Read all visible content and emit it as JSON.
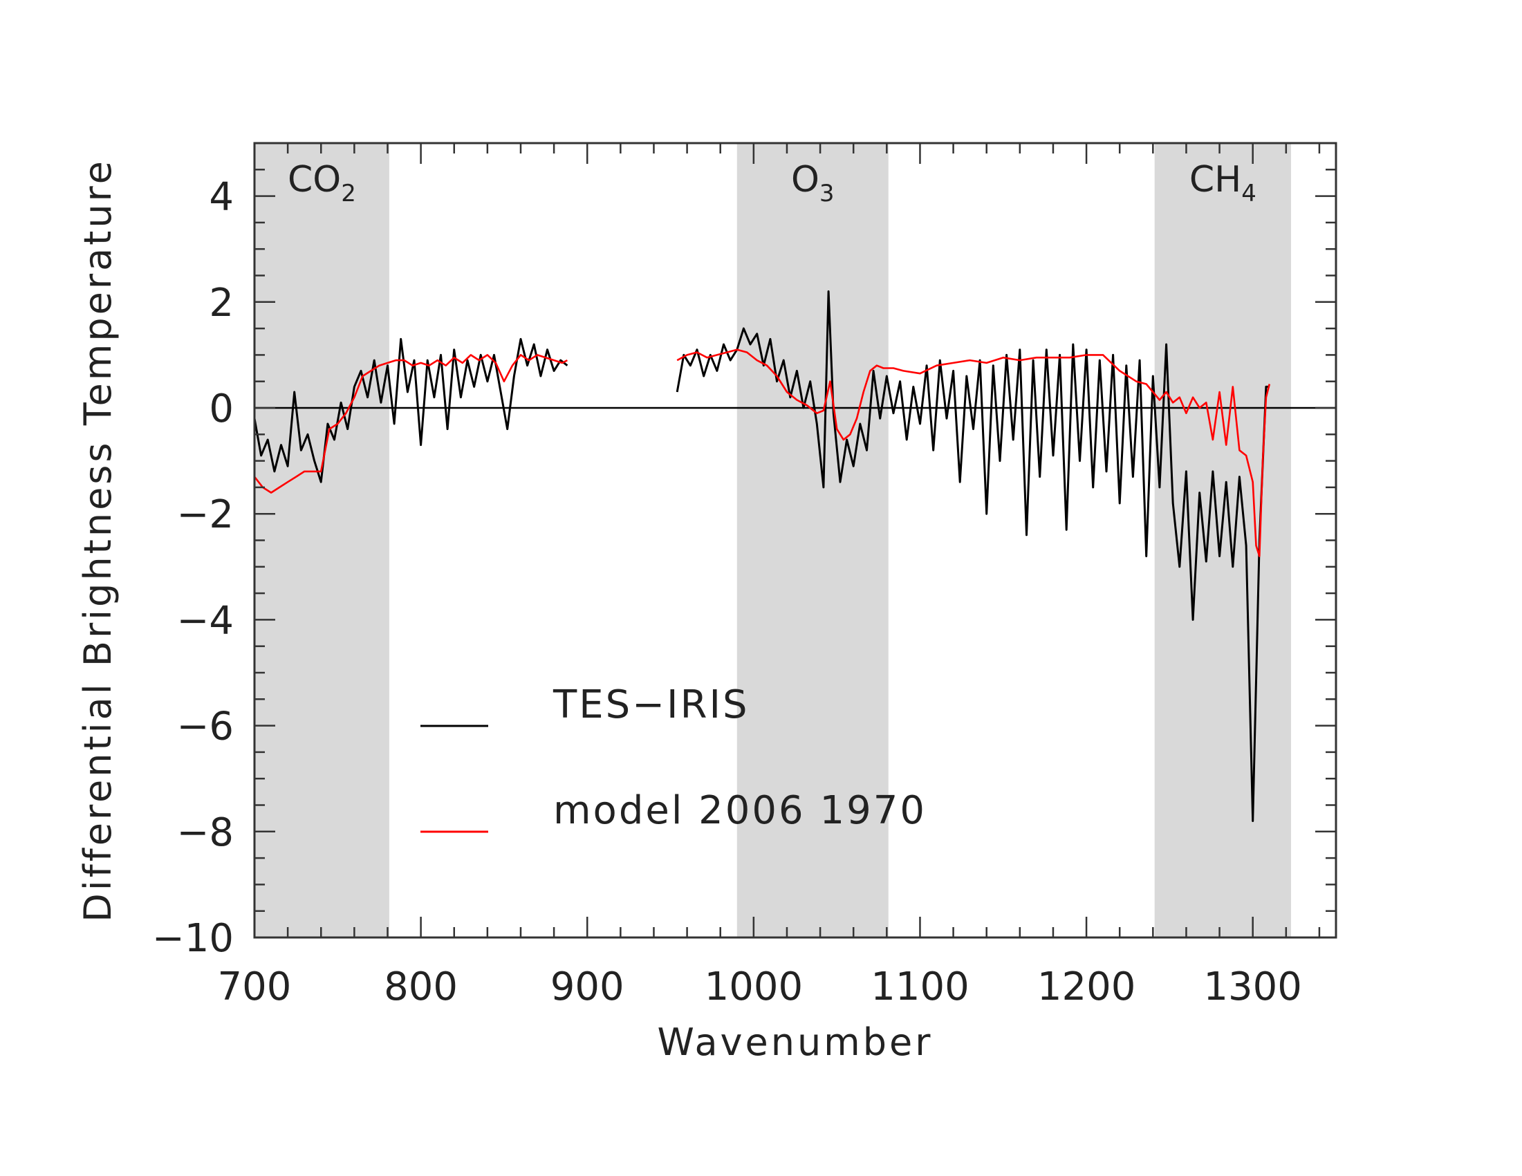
{
  "chart_data": {
    "type": "line",
    "title": "",
    "xlabel": "Wavenumber",
    "ylabel": "Differential Brightness Temperature",
    "xlim": [
      700,
      1350
    ],
    "ylim": [
      -10,
      5
    ],
    "xticks": [
      700,
      800,
      900,
      1000,
      1100,
      1200,
      1300
    ],
    "xtick_labels": [
      "700",
      "800",
      "900",
      "1000",
      "1100",
      "1200",
      "1300"
    ],
    "yticks": [
      4,
      2,
      0,
      -2,
      -4,
      -6,
      -8,
      -10
    ],
    "ytick_labels": [
      "4",
      "2",
      "0",
      "−2",
      "−4",
      "−6",
      "−8",
      "−10"
    ],
    "grid": false,
    "zero_line": true,
    "legend_position": "lower-center",
    "bands": [
      {
        "label": "CO",
        "subscript": "2",
        "x0": 700,
        "x1": 781,
        "color": "#d9d9d9"
      },
      {
        "label": "O",
        "subscript": "3",
        "x0": 990,
        "x1": 1081,
        "color": "#d9d9d9"
      },
      {
        "label": "CH",
        "subscript": "4",
        "x0": 1241,
        "x1": 1323,
        "color": "#d9d9d9"
      }
    ],
    "series": [
      {
        "name": "TES−IRIS",
        "color": "#000000",
        "segments": [
          {
            "x": [
              700,
              704,
              708,
              712,
              716,
              720,
              724,
              728,
              732,
              736,
              740,
              744,
              748,
              752,
              756,
              760,
              764,
              768,
              772,
              776,
              780,
              784,
              788,
              792,
              796,
              800,
              804,
              808,
              812,
              816,
              820,
              824,
              828,
              832,
              836,
              840,
              844,
              848,
              852,
              856,
              860,
              864,
              868,
              872,
              876,
              880,
              884,
              888
            ],
            "y": [
              -0.2,
              -0.9,
              -0.6,
              -1.2,
              -0.7,
              -1.1,
              0.3,
              -0.8,
              -0.5,
              -1.0,
              -1.4,
              -0.3,
              -0.6,
              0.1,
              -0.4,
              0.4,
              0.7,
              0.2,
              0.9,
              0.1,
              0.8,
              -0.3,
              1.3,
              0.3,
              0.9,
              -0.7,
              0.9,
              0.2,
              1.0,
              -0.4,
              1.1,
              0.2,
              0.9,
              0.4,
              1.0,
              0.5,
              1.0,
              0.3,
              -0.4,
              0.6,
              1.3,
              0.8,
              1.2,
              0.6,
              1.1,
              0.7,
              0.9,
              0.8
            ]
          },
          {
            "x": [
              954,
              958,
              962,
              966,
              970,
              974,
              978,
              982,
              986,
              990,
              994,
              998,
              1002,
              1006,
              1010,
              1014,
              1018,
              1022,
              1026,
              1030,
              1034,
              1038,
              1042,
              1045,
              1048,
              1052,
              1056,
              1060,
              1064,
              1068,
              1072,
              1076,
              1080,
              1084,
              1088,
              1092,
              1096,
              1100,
              1104,
              1108,
              1112,
              1116,
              1120,
              1124,
              1128,
              1132,
              1136,
              1140,
              1144,
              1148,
              1152,
              1156,
              1160,
              1164,
              1168,
              1172,
              1176,
              1180,
              1184,
              1188,
              1192,
              1196,
              1200,
              1204,
              1208,
              1212,
              1216,
              1220,
              1224,
              1228,
              1232,
              1236,
              1240,
              1244,
              1248,
              1252,
              1256,
              1260,
              1264,
              1268,
              1272,
              1276,
              1280,
              1284,
              1288,
              1292,
              1296,
              1300,
              1304,
              1308,
              1310
            ],
            "y": [
              0.3,
              1.0,
              0.8,
              1.1,
              0.6,
              1.0,
              0.7,
              1.2,
              0.9,
              1.1,
              1.5,
              1.2,
              1.4,
              0.8,
              1.3,
              0.5,
              0.9,
              0.2,
              0.7,
              0.0,
              0.5,
              -0.3,
              -1.5,
              2.2,
              -0.1,
              -1.4,
              -0.6,
              -1.1,
              -0.3,
              -0.8,
              0.7,
              -0.2,
              0.6,
              -0.1,
              0.5,
              -0.6,
              0.4,
              -0.3,
              0.8,
              -0.8,
              0.9,
              -0.2,
              0.7,
              -1.4,
              0.6,
              -0.4,
              0.9,
              -2.0,
              0.8,
              -1.0,
              1.0,
              -0.6,
              1.1,
              -2.4,
              0.9,
              -1.3,
              1.1,
              -0.9,
              1.0,
              -2.3,
              1.2,
              -1.0,
              1.1,
              -1.5,
              0.9,
              -1.2,
              1.0,
              -1.8,
              0.8,
              -1.3,
              0.9,
              -2.8,
              0.6,
              -1.5,
              1.2,
              -1.8,
              -3.0,
              -1.2,
              -4.0,
              -1.6,
              -2.9,
              -1.2,
              -2.8,
              -1.4,
              -3.0,
              -1.3,
              -2.6,
              -7.8,
              -2.5,
              0.4,
              0.4
            ]
          }
        ]
      },
      {
        "name": "model 2006 1970",
        "color": "#ff0000",
        "segments": [
          {
            "x": [
              700,
              705,
              710,
              715,
              720,
              725,
              730,
              735,
              740,
              745,
              750,
              755,
              760,
              765,
              770,
              775,
              780,
              785,
              790,
              795,
              800,
              805,
              810,
              815,
              820,
              825,
              830,
              835,
              840,
              845,
              850,
              855,
              860,
              865,
              870,
              875,
              880,
              885,
              888
            ],
            "y": [
              -1.3,
              -1.5,
              -1.6,
              -1.5,
              -1.4,
              -1.3,
              -1.2,
              -1.2,
              -1.2,
              -0.4,
              -0.3,
              -0.1,
              0.2,
              0.6,
              0.7,
              0.8,
              0.85,
              0.9,
              0.9,
              0.8,
              0.85,
              0.8,
              0.9,
              0.8,
              0.95,
              0.85,
              1.0,
              0.9,
              1.0,
              0.85,
              0.5,
              0.8,
              1.0,
              0.9,
              1.0,
              0.95,
              0.9,
              0.85,
              0.9
            ]
          },
          {
            "x": [
              954,
              960,
              966,
              972,
              978,
              984,
              990,
              996,
              1002,
              1008,
              1014,
              1020,
              1026,
              1032,
              1038,
              1042,
              1046,
              1050,
              1054,
              1058,
              1062,
              1066,
              1070,
              1074,
              1078,
              1084,
              1090,
              1100,
              1110,
              1120,
              1130,
              1140,
              1150,
              1160,
              1170,
              1180,
              1190,
              1200,
              1210,
              1220,
              1230,
              1236,
              1240,
              1244,
              1248,
              1252,
              1256,
              1260,
              1264,
              1268,
              1272,
              1276,
              1280,
              1284,
              1288,
              1292,
              1296,
              1300,
              1302,
              1304,
              1306,
              1308,
              1310
            ],
            "y": [
              0.9,
              1.0,
              1.05,
              0.95,
              1.0,
              1.05,
              1.1,
              1.05,
              0.9,
              0.8,
              0.6,
              0.3,
              0.15,
              0.05,
              -0.1,
              -0.05,
              0.5,
              -0.4,
              -0.6,
              -0.5,
              -0.2,
              0.3,
              0.7,
              0.8,
              0.75,
              0.75,
              0.7,
              0.65,
              0.8,
              0.85,
              0.9,
              0.85,
              0.95,
              0.9,
              0.95,
              0.95,
              0.95,
              1.0,
              1.0,
              0.7,
              0.5,
              0.45,
              0.3,
              0.15,
              0.3,
              0.1,
              0.2,
              -0.1,
              0.2,
              0.0,
              0.1,
              -0.6,
              0.3,
              -0.7,
              0.4,
              -0.8,
              -0.9,
              -1.4,
              -2.6,
              -2.8,
              -1.0,
              0.2,
              0.45
            ]
          }
        ]
      }
    ]
  }
}
